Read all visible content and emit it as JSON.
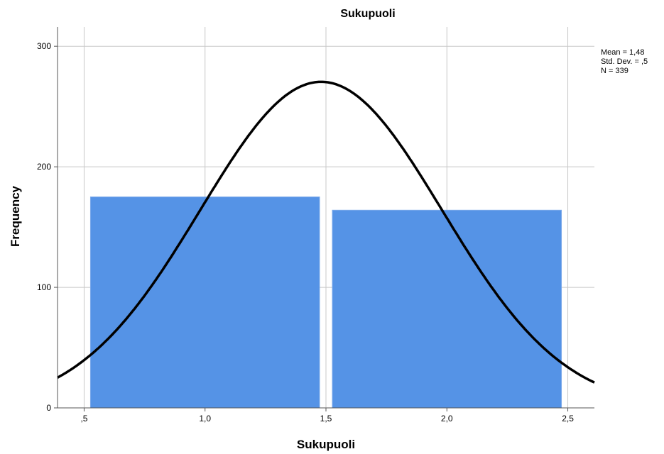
{
  "chart_data": {
    "type": "bar",
    "title": "Sukupuoli",
    "xlabel": "Sukupuoli",
    "ylabel": "Frequency",
    "bins": [
      {
        "start": 0.5,
        "end": 1.5,
        "value": 175
      },
      {
        "start": 1.5,
        "end": 2.5,
        "value": 164
      }
    ],
    "x_ticks": [
      {
        "value": 0.5,
        "label": ",5"
      },
      {
        "value": 1.0,
        "label": "1,0"
      },
      {
        "value": 1.5,
        "label": "1,5"
      },
      {
        "value": 2.0,
        "label": "2,0"
      },
      {
        "value": 2.5,
        "label": "2,5"
      }
    ],
    "y_ticks": [
      {
        "value": 0,
        "label": "0"
      },
      {
        "value": 100,
        "label": "100"
      },
      {
        "value": 200,
        "label": "200"
      },
      {
        "value": 300,
        "label": "300"
      }
    ],
    "xlim": [
      0.39,
      2.61
    ],
    "ylim": [
      0,
      316
    ],
    "grid": true,
    "normal_curve": {
      "mean": 1.48,
      "sd": 0.5,
      "n": 339,
      "bin_width": 1.0
    },
    "stats": {
      "mean_label": "Mean = 1,48",
      "sd_label": "Std. Dev. = ,5",
      "n_label": "N = 339"
    },
    "legend_position": "top-right",
    "colors": {
      "bar": "#5593e6",
      "bar_edge": "#ffffff",
      "curve": "#000000",
      "grid": "#c8c8c8",
      "axis": "#555555"
    }
  }
}
